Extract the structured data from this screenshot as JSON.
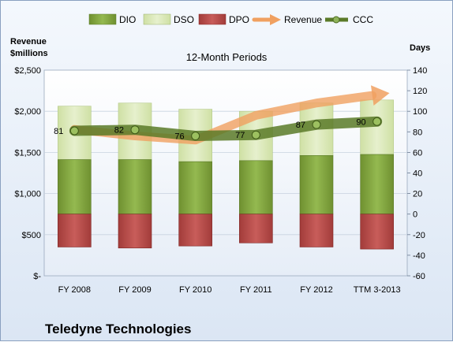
{
  "chart_data": {
    "type": "bar",
    "title": "12-Month Periods",
    "company": "Teledyne Technologies",
    "ylabel_left": "Revenue\n$millions",
    "ylabel_right": "Days",
    "categories": [
      "FY 2008",
      "FY 2009",
      "FY 2010",
      "FY 2011",
      "FY 2012",
      "TTM 3-2013"
    ],
    "left_axis": {
      "min": 0,
      "max": 2500,
      "step": 500,
      "tick_labels": [
        "$-",
        "$500",
        "$1,000",
        "$1,500",
        "$2,000",
        "$2,500"
      ]
    },
    "right_axis": {
      "min": -60,
      "max": 140,
      "step": 20,
      "tick_labels": [
        "-60",
        "-40",
        "-20",
        "0",
        "20",
        "40",
        "60",
        "80",
        "100",
        "120",
        "140"
      ]
    },
    "grid": true,
    "legend_position": "top",
    "legend": [
      "DIO",
      "DSO",
      "DPO",
      "Revenue",
      "CCC"
    ],
    "series": [
      {
        "name": "DIO",
        "axis": "right",
        "kind": "stacked-bar",
        "color": "#7fa13c",
        "values": [
          53,
          53,
          51,
          52,
          57,
          58
        ]
      },
      {
        "name": "DSO",
        "axis": "right",
        "kind": "stacked-bar",
        "color": "#d6e6b0",
        "values": [
          52,
          55,
          51,
          48,
          51,
          53
        ]
      },
      {
        "name": "DPO",
        "axis": "right",
        "kind": "negative-bar",
        "color": "#b84a48",
        "values": [
          -32,
          -33,
          -31,
          -28,
          -32,
          -34
        ]
      },
      {
        "name": "Revenue",
        "axis": "left",
        "kind": "arrow-line",
        "color": "#f0a060",
        "values": [
          1780,
          1700,
          1650,
          1950,
          2100,
          2200
        ]
      },
      {
        "name": "CCC",
        "axis": "right",
        "kind": "line",
        "color": "#5a7a28",
        "values": [
          81,
          82,
          76,
          77,
          87,
          90
        ]
      }
    ],
    "data_labels": [
      "81",
      "82",
      "76",
      "77",
      "87",
      "90"
    ]
  }
}
